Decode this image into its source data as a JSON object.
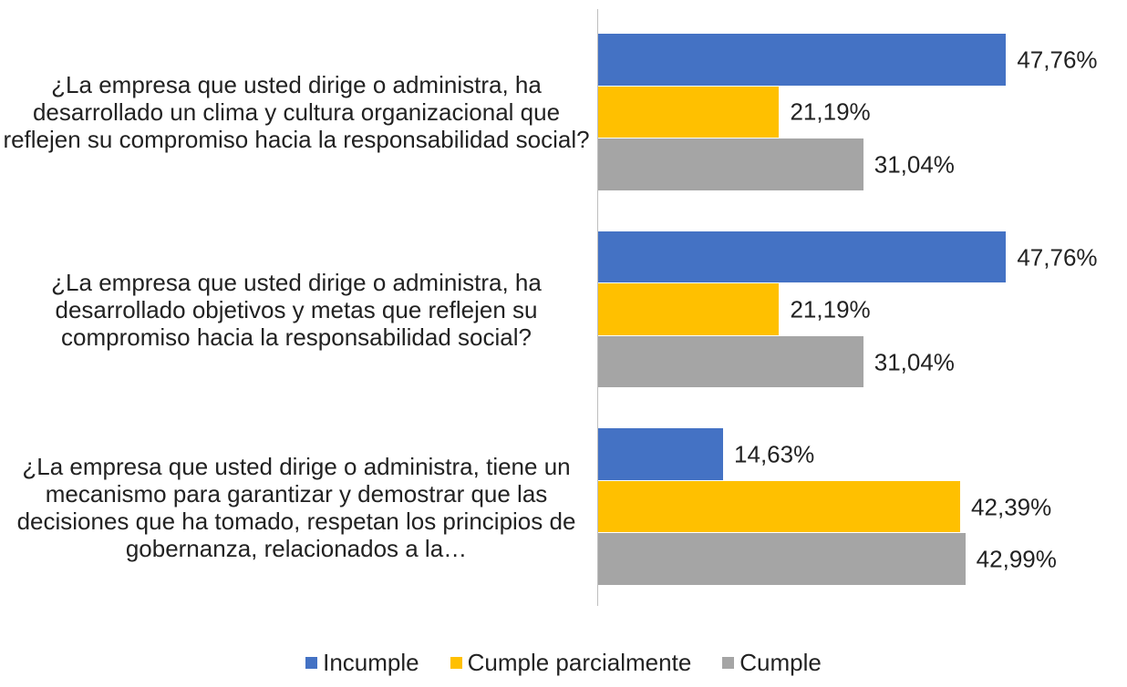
{
  "chart_data": {
    "type": "bar",
    "orientation": "horizontal",
    "categories": [
      "¿La empresa que usted dirige o administra, ha desarrollado un clima y cultura organizacional que reflejen su compromiso hacia la responsabilidad social?",
      "¿La empresa que usted dirige o administra, ha desarrollado objetivos y metas que reflejen su compromiso hacia la responsabilidad social?",
      "¿La empresa que usted dirige o administra, tiene un mecanismo para garantizar y demostrar que las decisiones que ha tomado, respetan los principios de gobernanza, relacionados a la…"
    ],
    "series": [
      {
        "name": "Incumple",
        "color": "#4472c4",
        "values": [
          47.76,
          47.76,
          14.63
        ],
        "value_labels": [
          "47,76%",
          "47,76%",
          "14,63%"
        ]
      },
      {
        "name": "Cumple parcialmente",
        "color": "#ffc000",
        "values": [
          21.19,
          21.19,
          42.39
        ],
        "value_labels": [
          "21,19%",
          "21,19%",
          "42,39%"
        ]
      },
      {
        "name": "Cumple",
        "color": "#a5a5a5",
        "values": [
          31.04,
          31.04,
          42.99
        ],
        "value_labels": [
          "31,04%",
          "31,04%",
          "42,99%"
        ]
      }
    ],
    "xlim": [
      0,
      60
    ],
    "legend": "bottom"
  }
}
